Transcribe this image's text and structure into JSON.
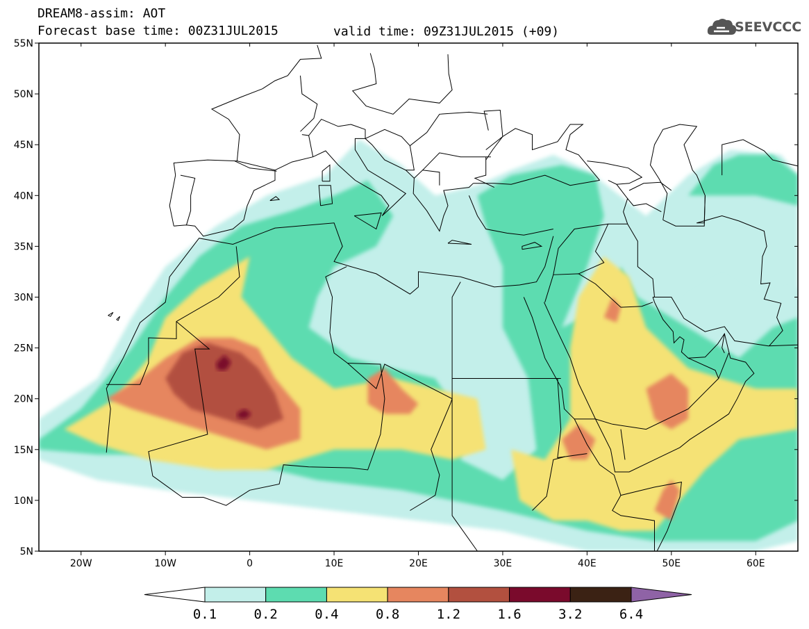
{
  "title": {
    "line1": "DREAM8-assim: AOT",
    "base_time": "Forecast base time: 00Z31JUL2015",
    "valid_time": "valid time: 09Z31JUL2015 (+09)"
  },
  "logo": {
    "text": "SEEVCCC",
    "icon": "cloud-logo-icon"
  },
  "map": {
    "lon_range": [
      -25,
      65
    ],
    "lat_range": [
      5,
      55
    ],
    "lat_ticks": [
      {
        "value": 55,
        "label": "55N"
      },
      {
        "value": 50,
        "label": "50N"
      },
      {
        "value": 45,
        "label": "45N"
      },
      {
        "value": 40,
        "label": "40N"
      },
      {
        "value": 35,
        "label": "35N"
      },
      {
        "value": 30,
        "label": "30N"
      },
      {
        "value": 25,
        "label": "25N"
      },
      {
        "value": 20,
        "label": "20N"
      },
      {
        "value": 15,
        "label": "15N"
      },
      {
        "value": 10,
        "label": "10N"
      },
      {
        "value": 5,
        "label": "5N"
      }
    ],
    "lon_ticks": [
      {
        "value": -20,
        "label": "20W"
      },
      {
        "value": -10,
        "label": "10W"
      },
      {
        "value": 0,
        "label": "0"
      },
      {
        "value": 10,
        "label": "10E"
      },
      {
        "value": 20,
        "label": "20E"
      },
      {
        "value": 30,
        "label": "30E"
      },
      {
        "value": 40,
        "label": "40E"
      },
      {
        "value": 50,
        "label": "50E"
      },
      {
        "value": 60,
        "label": "60E"
      }
    ],
    "field_levels": [
      {
        "min": 0.1,
        "color": "#c3efea"
      },
      {
        "min": 0.2,
        "color": "#5ddcb0"
      },
      {
        "min": 0.4,
        "color": "#f5e274"
      },
      {
        "min": 0.8,
        "color": "#e6865f"
      },
      {
        "min": 1.2,
        "color": "#b2503f"
      },
      {
        "min": 1.6,
        "color": "#7a0a2c"
      }
    ]
  },
  "colorbar": {
    "labels": [
      "0.1",
      "0.2",
      "0.4",
      "0.8",
      "1.2",
      "1.6",
      "3.2",
      "6.4"
    ],
    "colors": [
      "#c3efea",
      "#5ddcb0",
      "#f5e274",
      "#e6865f",
      "#b2503f",
      "#7a0a2c",
      "#3b2214"
    ],
    "low_color": "#ffffff",
    "high_color": "#8f63a6"
  }
}
